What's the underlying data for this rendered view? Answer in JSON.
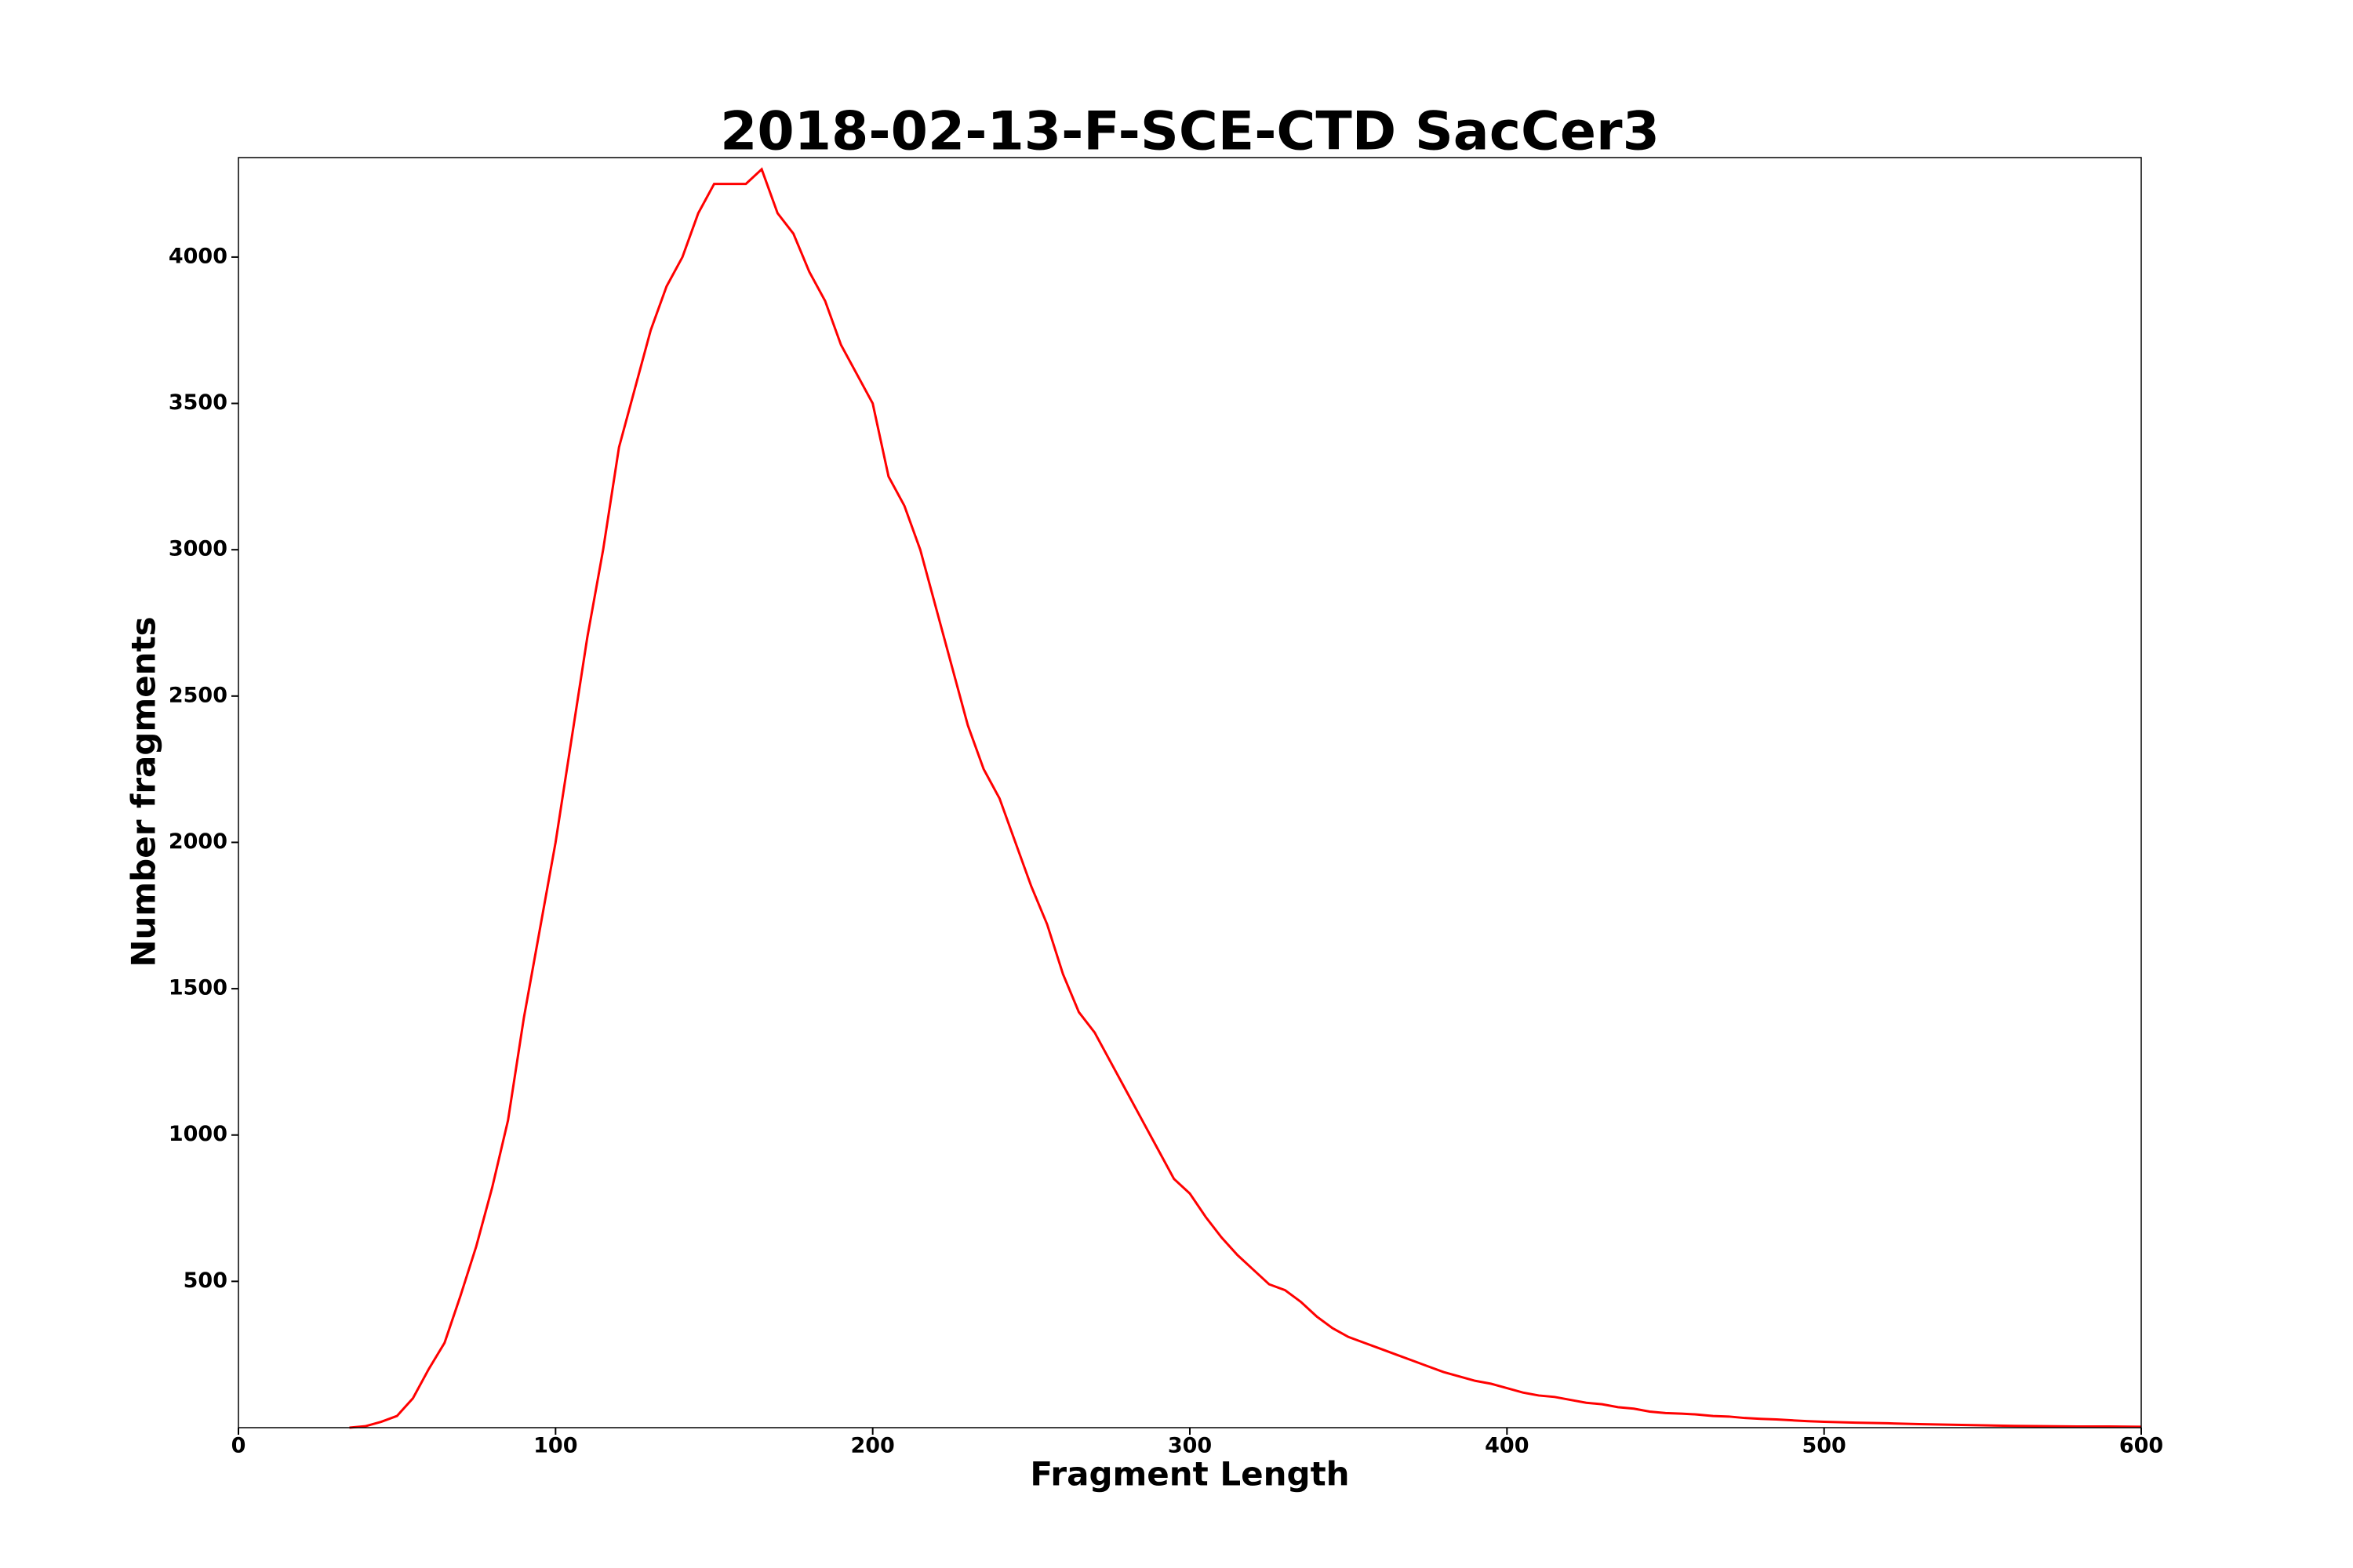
{
  "chart_data": {
    "type": "line",
    "title": "2018-02-13-F-SCE-CTD SacCer3",
    "x_label": "Fragment Length",
    "y_label": "Number fragments",
    "x": [
      35,
      40,
      45,
      50,
      55,
      60,
      65,
      70,
      75,
      80,
      85,
      90,
      95,
      100,
      105,
      110,
      115,
      120,
      125,
      130,
      135,
      140,
      145,
      150,
      155,
      160,
      165,
      170,
      175,
      180,
      185,
      190,
      195,
      200,
      205,
      210,
      215,
      220,
      225,
      230,
      235,
      240,
      245,
      250,
      255,
      260,
      265,
      270,
      275,
      280,
      285,
      290,
      295,
      300,
      305,
      310,
      315,
      320,
      325,
      330,
      335,
      340,
      345,
      350,
      355,
      360,
      365,
      370,
      375,
      380,
      385,
      390,
      395,
      400,
      405,
      410,
      415,
      420,
      425,
      430,
      435,
      440,
      445,
      450,
      455,
      460,
      465,
      470,
      475,
      480,
      485,
      490,
      495,
      500,
      510,
      520,
      530,
      540,
      550,
      560,
      570,
      580,
      590,
      600
    ],
    "series": [
      {
        "name": "Number fragments",
        "color": "#ff0000",
        "values": [
          0,
          5,
          20,
          40,
          100,
          200,
          290,
          450,
          620,
          820,
          1050,
          1400,
          1700,
          2000,
          2350,
          2700,
          3000,
          3350,
          3550,
          3750,
          3900,
          4000,
          4150,
          4250,
          4250,
          4250,
          4300,
          4150,
          4080,
          3950,
          3850,
          3700,
          3600,
          3500,
          3250,
          3150,
          3000,
          2800,
          2600,
          2400,
          2250,
          2150,
          2000,
          1850,
          1720,
          1550,
          1420,
          1350,
          1250,
          1150,
          1050,
          950,
          850,
          800,
          720,
          650,
          590,
          540,
          490,
          470,
          430,
          380,
          340,
          310,
          290,
          270,
          250,
          230,
          210,
          190,
          175,
          160,
          150,
          135,
          120,
          110,
          105,
          95,
          85,
          80,
          70,
          65,
          55,
          50,
          48,
          45,
          40,
          38,
          33,
          30,
          28,
          25,
          22,
          20,
          17,
          15,
          12,
          10,
          8,
          6,
          5,
          4,
          4,
          3
        ]
      }
    ],
    "xlim": [
      0,
      600
    ],
    "ylim": [
      0,
      4340
    ],
    "xticks": [
      0,
      100,
      200,
      300,
      400,
      500,
      600
    ],
    "yticks": [
      500,
      1000,
      1500,
      2000,
      2500,
      3000,
      3500,
      4000
    ]
  }
}
